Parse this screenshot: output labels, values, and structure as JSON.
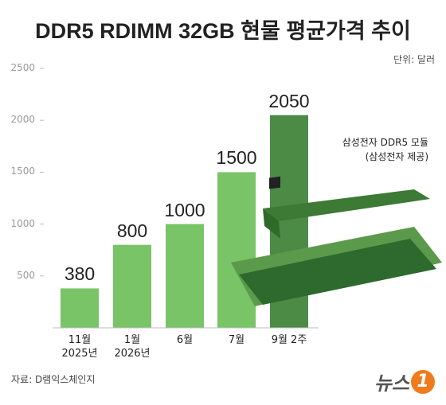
{
  "chart_data": {
    "type": "bar",
    "title": "DDR5 RDIMM 32GB 현물 평균가격 추이",
    "unit": "단위: 달러",
    "categories": [
      "11월\n2025년",
      "1월\n2026년",
      "6월",
      "7월",
      "9월 2주"
    ],
    "values": [
      380,
      800,
      1000,
      1500,
      2050
    ],
    "colors": [
      "#78c467",
      "#78c467",
      "#78c467",
      "#78c467",
      "#4b8b46"
    ],
    "ylim": [
      0,
      2500
    ],
    "yticks": [
      500,
      1000,
      1500,
      2000,
      2500
    ],
    "annotation": "삼성전자 DDR5 모듈\n(삼성전자 제공)",
    "source": "자료: D램익스체인지",
    "logo": {
      "text": "뉴스",
      "mark": "1"
    }
  }
}
